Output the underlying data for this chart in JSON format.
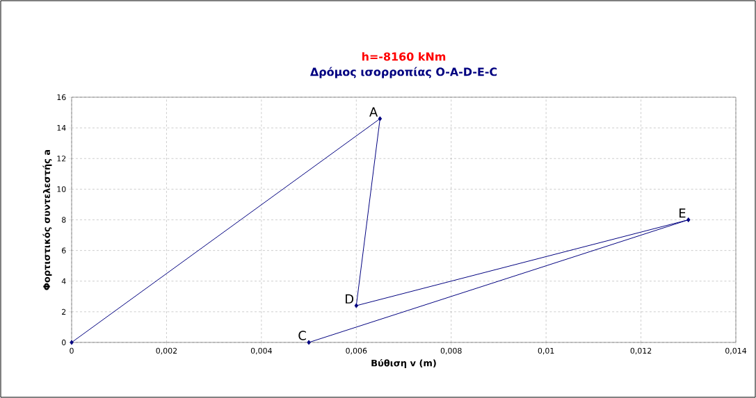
{
  "chart_data": {
    "type": "line",
    "title": "h=-8160 kNm",
    "subtitle": "Δρόμος ισορροπίας O-A-D-E-C",
    "xlabel": "Βύθιση v (m)",
    "ylabel": "Φορτιστικός συντελεστής a",
    "x": [
      0,
      0.0065,
      0.006,
      0.013,
      0.005
    ],
    "series": [
      {
        "color": "#000080",
        "values": [
          0,
          14.6,
          2.4,
          8,
          0
        ]
      }
    ],
    "xlim": [
      0,
      0.014
    ],
    "ylim": [
      0,
      16
    ],
    "xticks": [
      0,
      {
        "value": 0.002,
        "label": "0,002"
      },
      {
        "value": 0.004,
        "label": "0,004"
      },
      {
        "value": 0.006,
        "label": "0,006"
      },
      {
        "value": 0.008,
        "label": "0,008"
      },
      {
        "value": 0.01,
        "label": "0,01"
      },
      {
        "value": 0.012,
        "label": "0,012"
      },
      {
        "value": 0.014,
        "label": "0,014"
      }
    ],
    "yticks": [
      0,
      2,
      4,
      6,
      8,
      10,
      12,
      14,
      16
    ],
    "annotations": [
      {
        "text": "A",
        "x": 0.0065,
        "y": 14.6
      },
      {
        "text": "D",
        "x": 0.006,
        "y": 2.4
      },
      {
        "text": "E",
        "x": 0.013,
        "y": 8
      },
      {
        "text": "C",
        "x": 0.005,
        "y": 0
      }
    ],
    "grid": true,
    "marker": "diamond",
    "line_style": "solid"
  }
}
